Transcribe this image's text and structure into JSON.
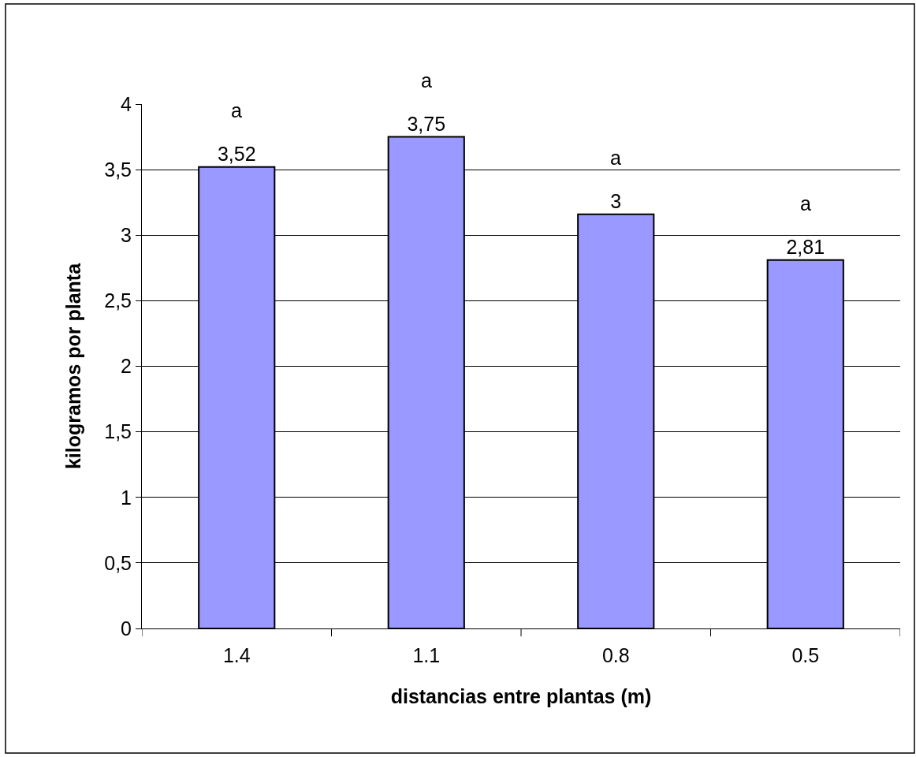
{
  "chart_data": {
    "type": "bar",
    "xlabel": "distancias entre plantas (m)",
    "ylabel": "kilogramos por planta",
    "categories": [
      "1.4",
      "1.1",
      "0.8",
      "0.5"
    ],
    "series": [
      {
        "color": "#9999ff",
        "values": [
          3.52,
          3.75,
          3.16,
          2.81
        ],
        "value_labels": [
          "3,52",
          "3,75",
          "3",
          "2,81"
        ]
      }
    ],
    "ylim": [
      0,
      4
    ],
    "yticks": [
      0,
      {
        "value": 0.5,
        "label": "0,5"
      },
      1,
      {
        "value": 1.5,
        "label": "1,5"
      },
      2,
      {
        "value": 2.5,
        "label": "2,5"
      },
      3,
      {
        "value": 3.5,
        "label": "3,5"
      },
      4
    ],
    "annotations": [
      "a",
      "a",
      "a",
      "a"
    ],
    "grid": "y"
  }
}
